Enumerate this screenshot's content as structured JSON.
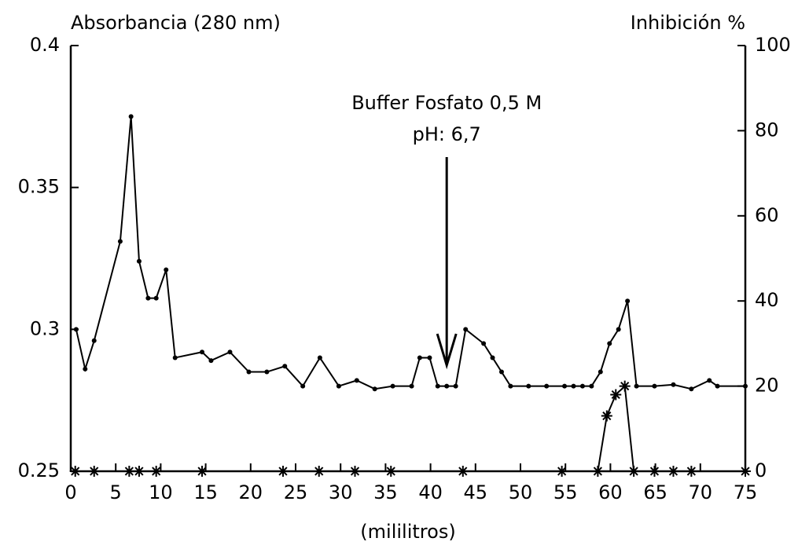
{
  "chart_data": {
    "type": "line",
    "y_title": "Absorbancia (280 nm)",
    "y2_title": "Inhibición %",
    "x_title": "(mililitros)",
    "annotation": [
      "Buffer Fosfato 0,5 M",
      "pH: 6,7"
    ],
    "annotation_x": 41.8,
    "xlim": [
      0,
      75
    ],
    "xticks": [
      0,
      5,
      10,
      15,
      20,
      25,
      30,
      35,
      40,
      45,
      50,
      55,
      60,
      65,
      70,
      75
    ],
    "ylim": [
      0.25,
      0.4
    ],
    "yticks": [
      0.25,
      0.3,
      0.35,
      0.4
    ],
    "y2lim": [
      0,
      100
    ],
    "y2ticks": [
      0,
      20,
      40,
      60,
      80,
      100
    ],
    "series": [
      {
        "name": "Absorbancia",
        "color": "#000000",
        "marker": "dot",
        "axis": "y",
        "x": [
          0.6,
          1.6,
          2.6,
          5.5,
          6.7,
          7.6,
          8.6,
          9.5,
          10.6,
          11.6,
          14.6,
          15.6,
          17.7,
          19.8,
          21.8,
          23.8,
          25.8,
          27.7,
          29.8,
          31.8,
          33.8,
          35.8,
          37.9,
          38.8,
          39.9,
          40.8,
          41.8,
          42.8,
          43.9,
          45.9,
          46.9,
          47.9,
          48.9,
          50.9,
          52.9,
          54.9,
          55.9,
          56.9,
          57.9,
          58.9,
          59.9,
          60.9,
          61.9,
          62.9,
          64.9,
          67,
          69,
          71,
          71.9,
          75
        ],
        "values": [
          0.3,
          0.286,
          0.296,
          0.331,
          0.375,
          0.324,
          0.311,
          0.311,
          0.321,
          0.29,
          0.292,
          0.289,
          0.292,
          0.285,
          0.285,
          0.287,
          0.28,
          0.29,
          0.28,
          0.282,
          0.279,
          0.28,
          0.28,
          0.29,
          0.29,
          0.28,
          0.28,
          0.28,
          0.3,
          0.295,
          0.29,
          0.285,
          0.28,
          0.28,
          0.28,
          0.28,
          0.28,
          0.28,
          0.28,
          0.285,
          0.295,
          0.3,
          0.31,
          0.28,
          0.28,
          0.2805,
          0.279,
          0.282,
          0.28,
          0.28
        ]
      },
      {
        "name": "Inhibición",
        "color": "#000000",
        "marker": "star",
        "axis": "y2",
        "x": [
          0.5,
          2.6,
          6.5,
          7.6,
          9.5,
          14.6,
          23.6,
          27.6,
          31.6,
          35.6,
          43.6,
          54.6,
          58.6,
          59.6,
          60.6,
          61.6,
          62.6,
          64.9,
          67,
          69,
          75
        ],
        "values": [
          0,
          0,
          0,
          0,
          0,
          0,
          0,
          0,
          0,
          0,
          0,
          0,
          0,
          13,
          18,
          20,
          0,
          0,
          0,
          0,
          0
        ]
      }
    ]
  }
}
